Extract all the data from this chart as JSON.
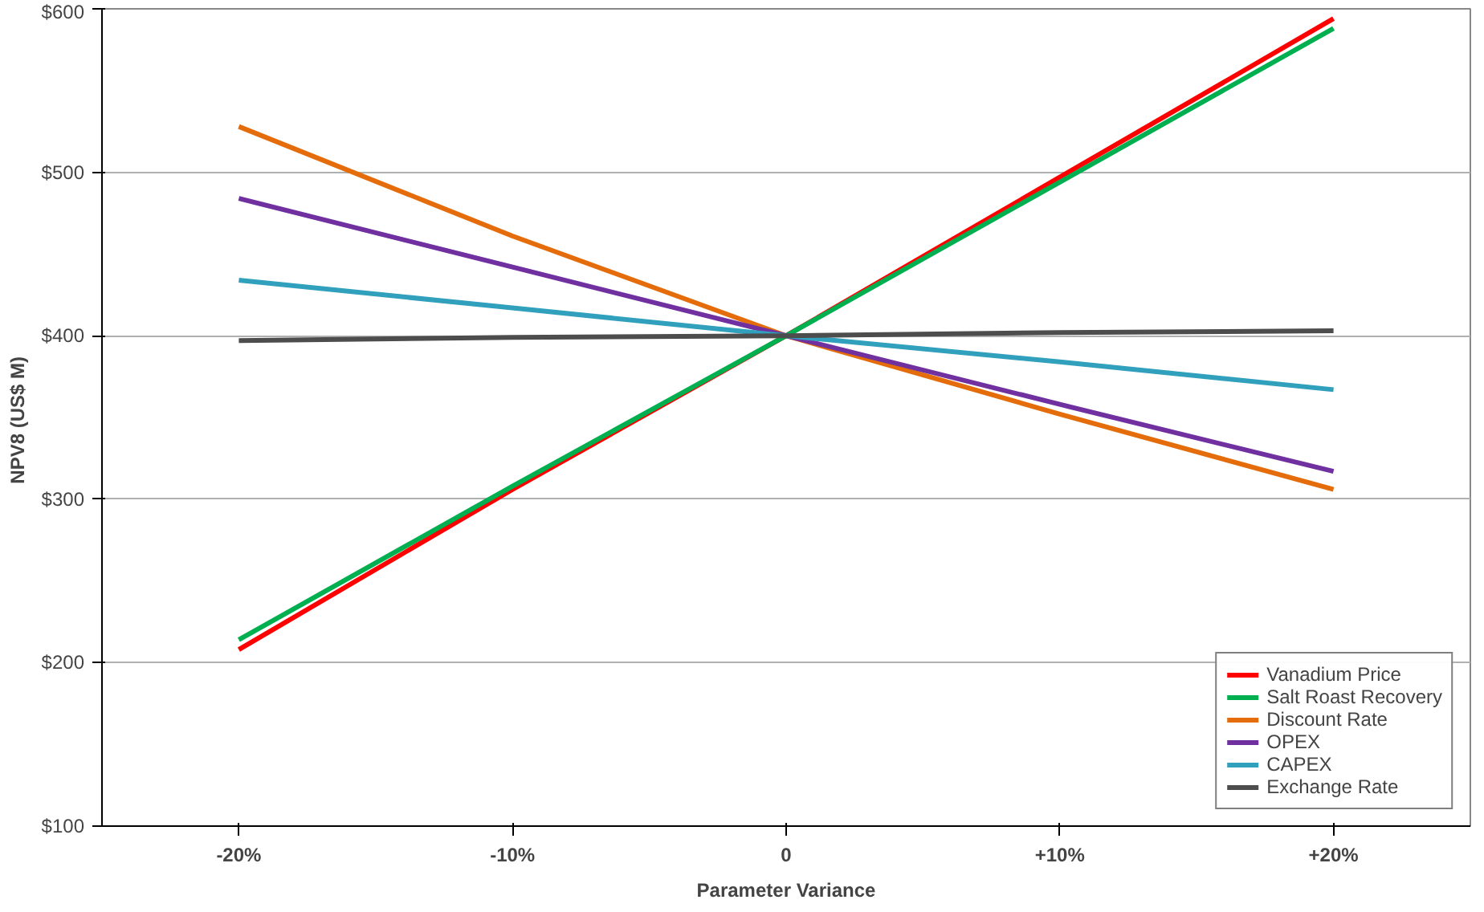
{
  "chart_data": {
    "type": "line",
    "xlabel": "Parameter Variance",
    "ylabel": "NPV8  (US$ M)",
    "categories": [
      "-20%",
      "-10%",
      "0",
      "+10%",
      "+20%"
    ],
    "ylim": [
      100,
      600
    ],
    "yticks": [
      {
        "value": 100,
        "label": "$100"
      },
      {
        "value": 200,
        "label": "$200"
      },
      {
        "value": 300,
        "label": "$300"
      },
      {
        "value": 400,
        "label": "$400"
      },
      {
        "value": 500,
        "label": "$500"
      },
      {
        "value": 600,
        "label": "$600"
      }
    ],
    "grid": "y",
    "legend": "bottom right",
    "marker": "none",
    "line_style": "solid",
    "series": [
      {
        "name": "Vanadium Price",
        "color": "#ff0000",
        "values": [
          208,
          306,
          400,
          497,
          594
        ]
      },
      {
        "name": "Salt Roast Recovery",
        "color": "#00b050",
        "values": [
          214,
          308,
          400,
          494,
          588
        ]
      },
      {
        "name": "Discount Rate",
        "color": "#e46c0a",
        "values": [
          528,
          461,
          400,
          352,
          306
        ]
      },
      {
        "name": "OPEX",
        "color": "#7030a0",
        "values": [
          484,
          442,
          400,
          358,
          317
        ]
      },
      {
        "name": "CAPEX",
        "color": "#31a0bd",
        "values": [
          434,
          417,
          400,
          384,
          367
        ]
      },
      {
        "name": "Exchange Rate",
        "color": "#4d4d4d",
        "values": [
          397,
          399,
          400,
          402,
          403
        ]
      }
    ]
  }
}
